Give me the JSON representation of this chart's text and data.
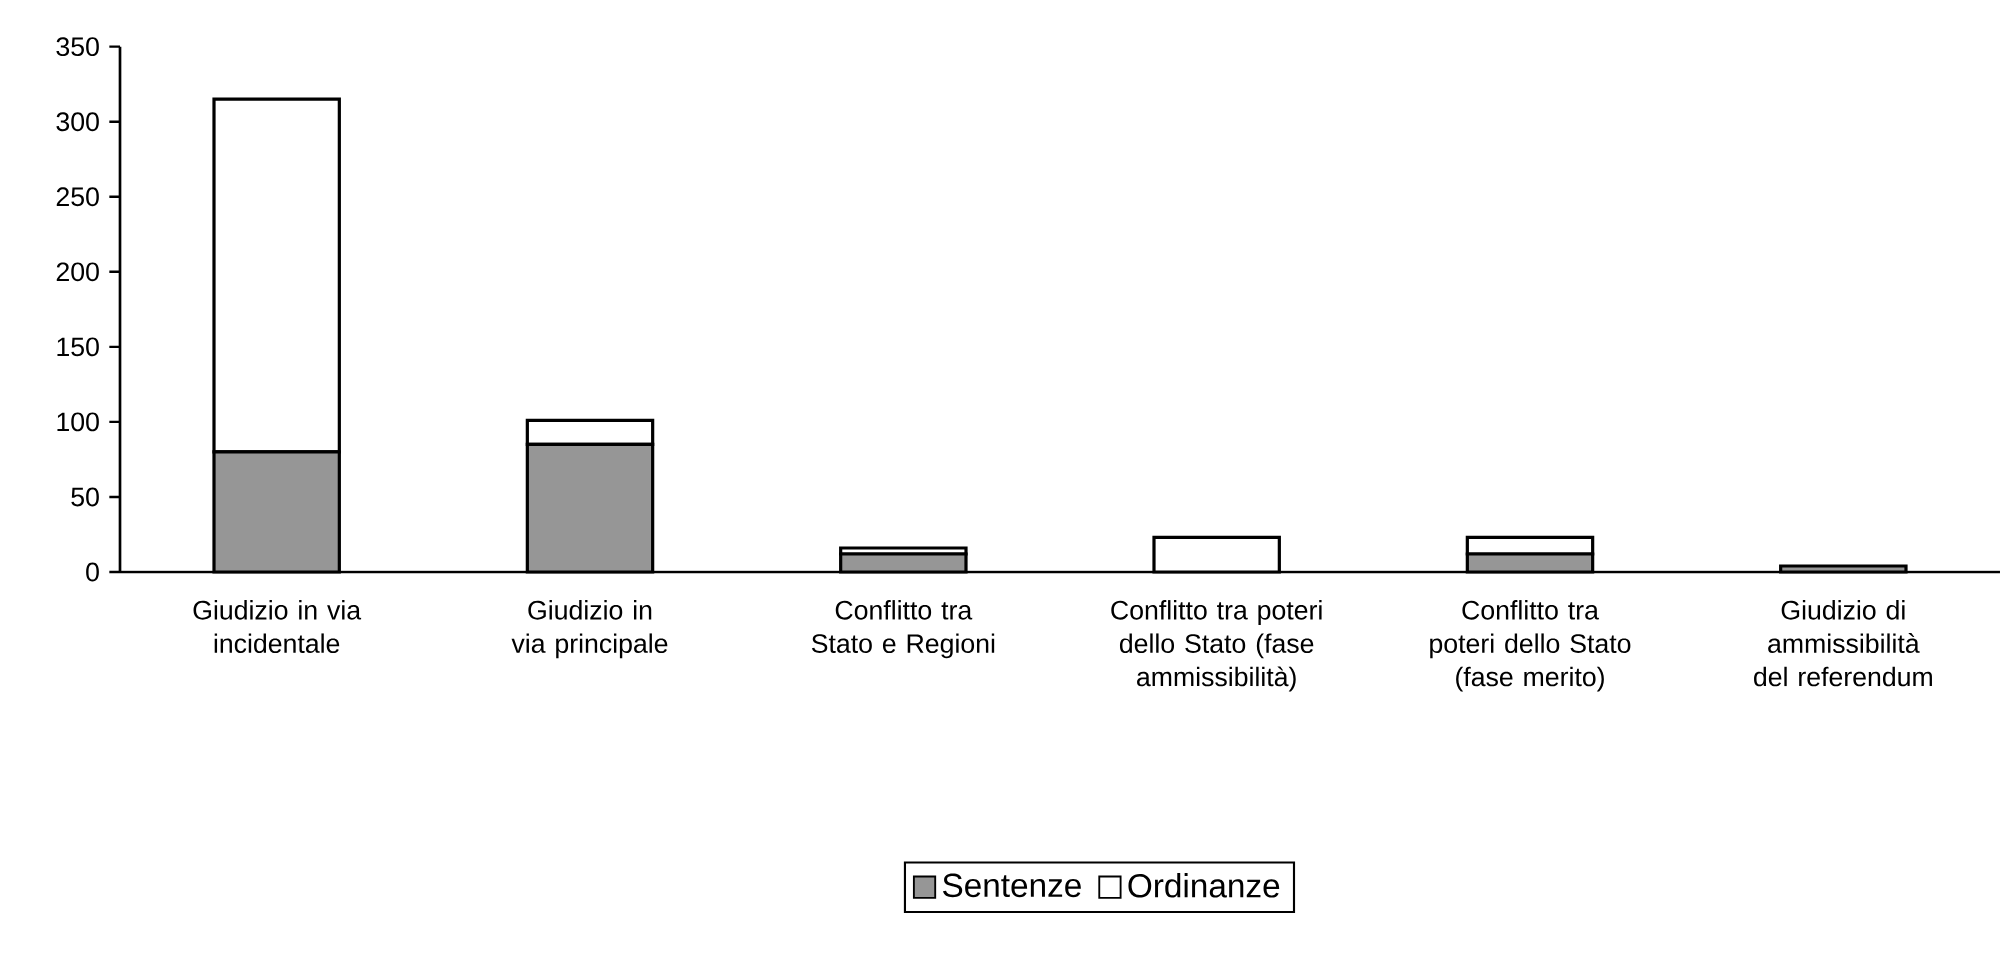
{
  "chart_data": {
    "type": "bar",
    "stacked": true,
    "categories": [
      "Giudizio in via incidentale",
      "Giudizio in via principale",
      "Conflitto tra Stato e Regioni",
      "Conflitto tra poteri dello Stato (fase ammissibilità)",
      "Conflitto tra poteri dello Stato (fase merito)",
      "Giudizio di ammissibilità del referendum"
    ],
    "series": [
      {
        "name": "Sentenze",
        "color": "#969696",
        "values": [
          80,
          85,
          12,
          0,
          12,
          4
        ]
      },
      {
        "name": "Ordinanze",
        "color": "#ffffff",
        "values": [
          235,
          16,
          4,
          23,
          11,
          0
        ]
      }
    ],
    "ylim": [
      0,
      350
    ],
    "yticks": [
      0,
      50,
      100,
      150,
      200,
      250,
      300,
      350
    ],
    "legend": "bottom"
  }
}
